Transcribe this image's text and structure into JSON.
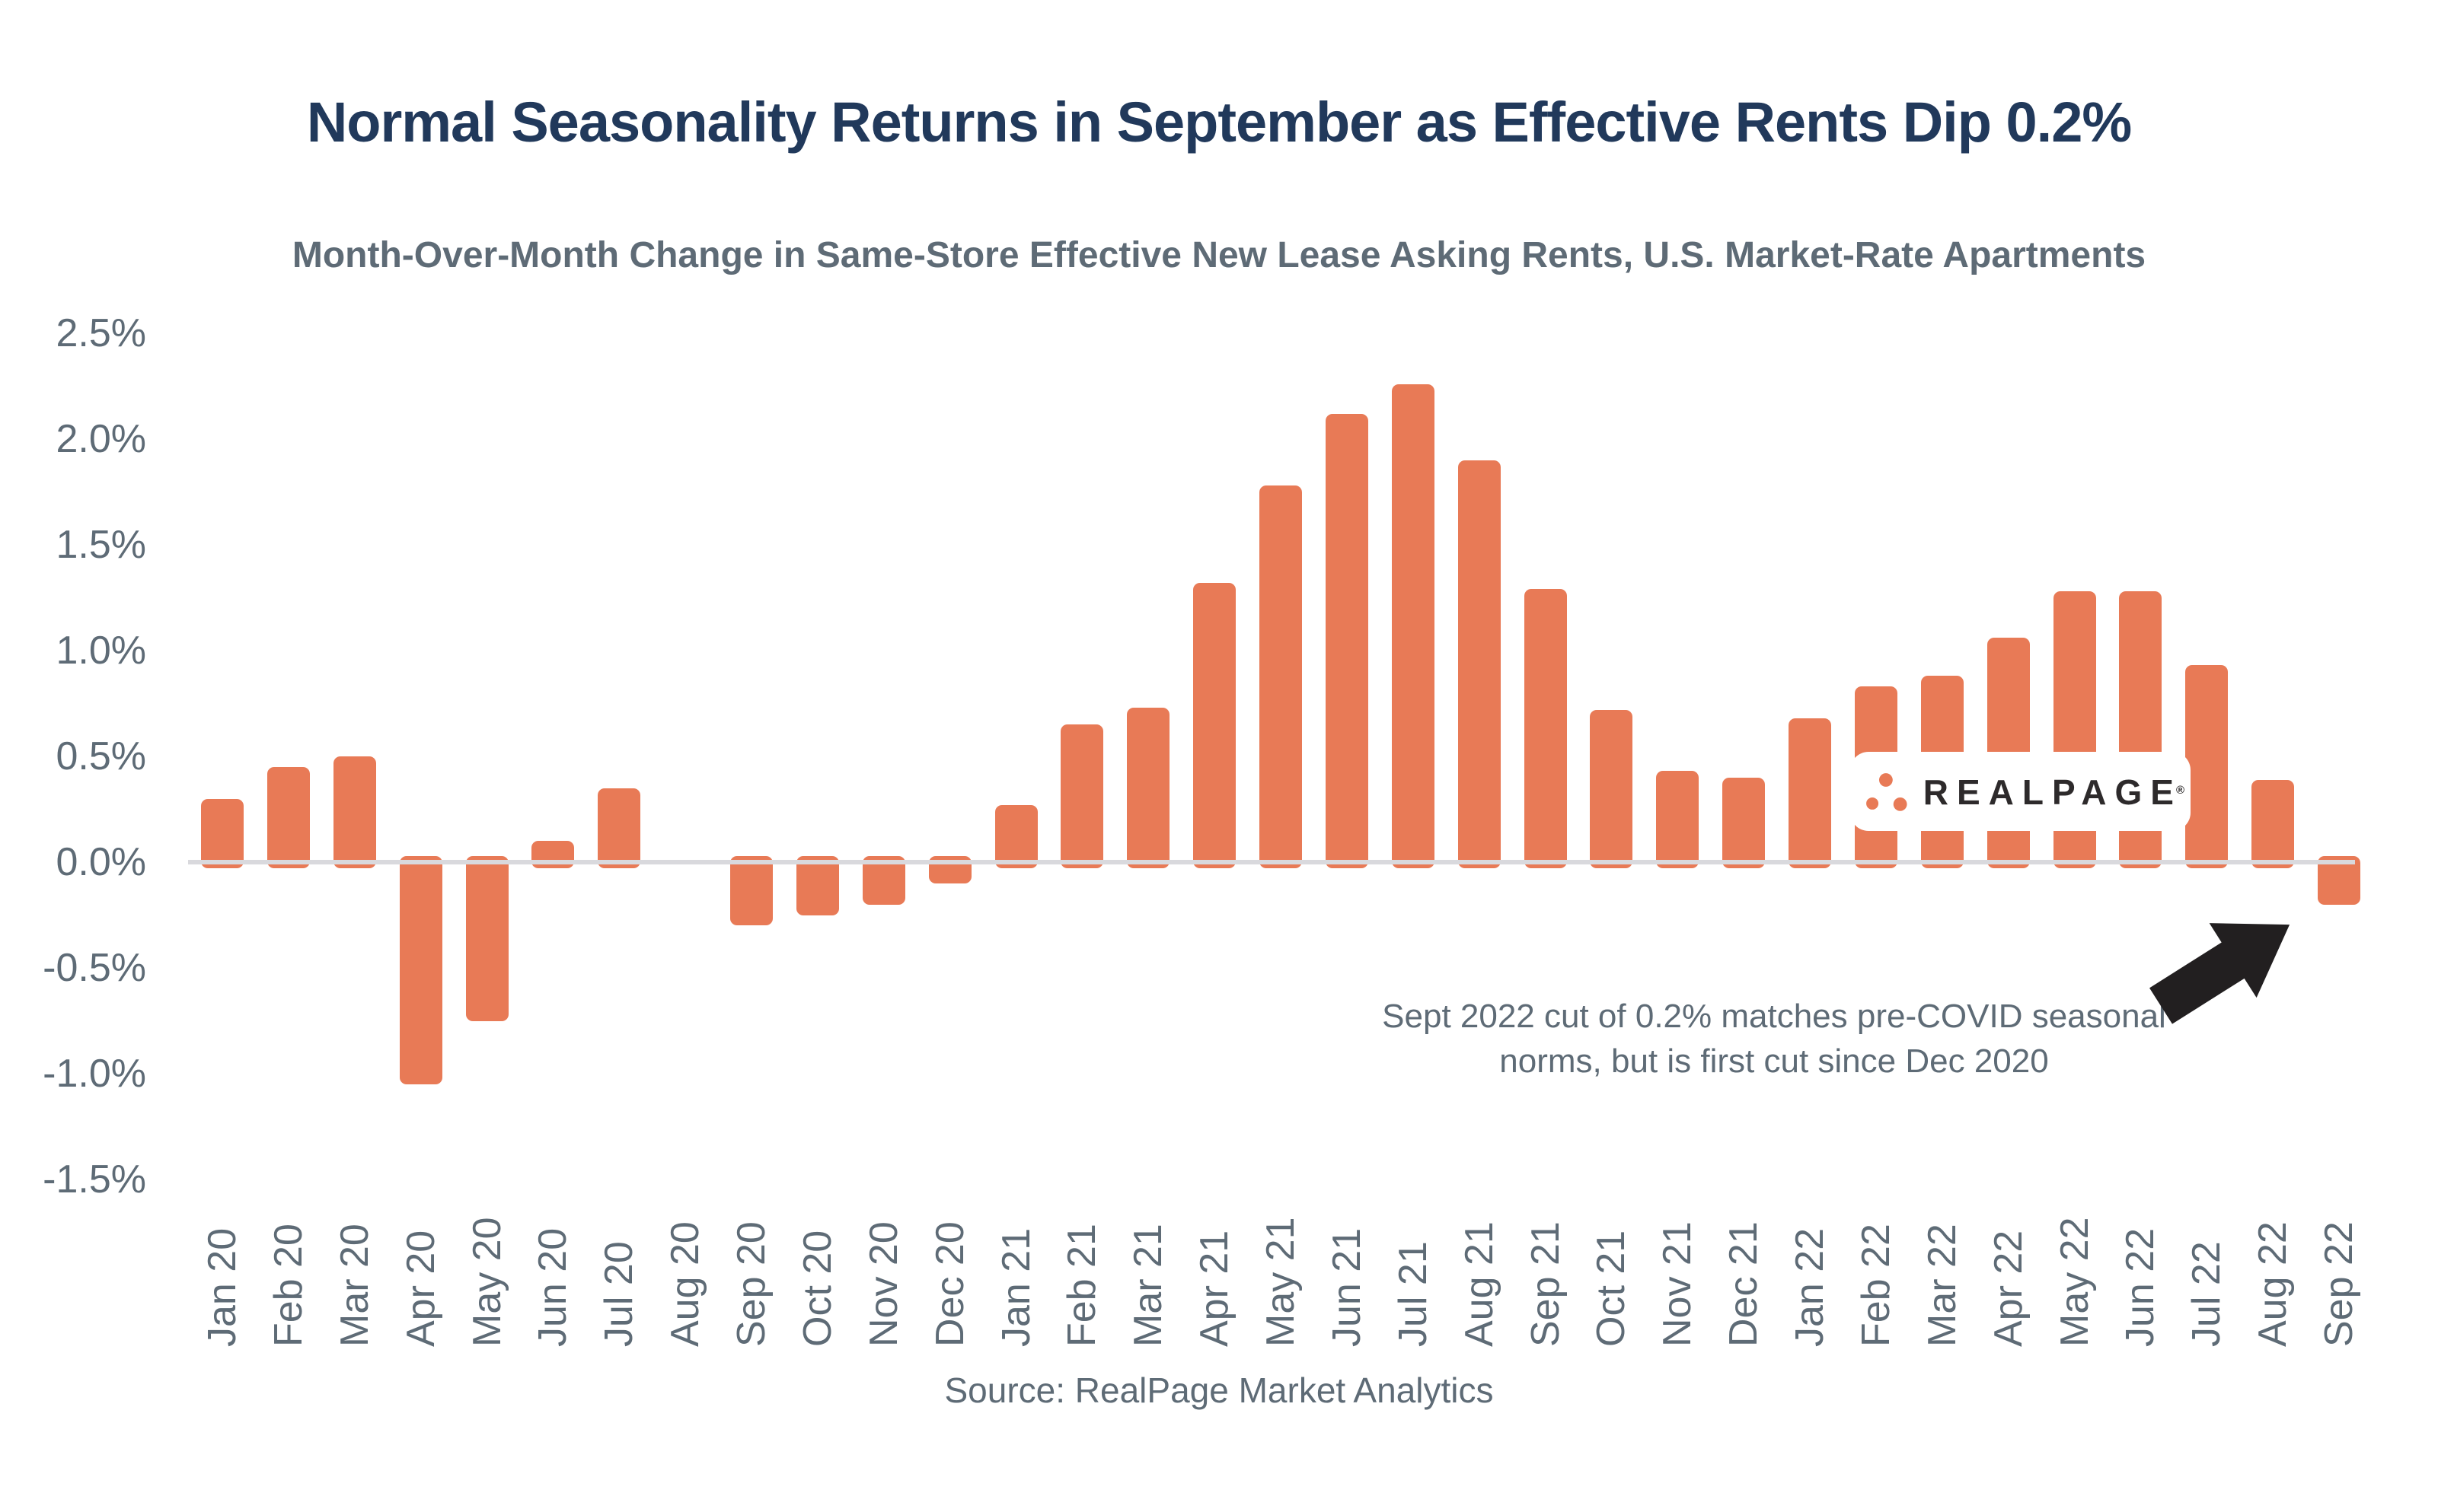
{
  "title": "Normal Seasonality Returns in September as Effective Rents Dip 0.2%",
  "subtitle": "Month-Over-Month Change in Same-Store Effective New Lease Asking Rents, U.S. Market-Rate Apartments",
  "source": "Source: RealPage Market Analytics",
  "annotation": {
    "line1": "Sept 2022 cut of 0.2% matches pre-COVID seasonal",
    "line2": "norms, but is first cut since Dec 2020"
  },
  "logo": {
    "text": "REALPAGE",
    "registered": "®"
  },
  "colors": {
    "bar": "#E87A56",
    "title": "#21395B",
    "axis_text": "#5E6B76",
    "subtitle_text": "#5E6B76",
    "annotation_text": "#5E6B76",
    "zero_line": "#D9D9DD",
    "arrow": "#221F20",
    "logo_text": "#2D2A2B",
    "logo_dots": "#E87A56"
  },
  "chart_data": {
    "type": "bar",
    "title": "Month-Over-Month Change in Same-Store Effective New Lease Asking Rents, U.S. Market-Rate Apartments",
    "xlabel": "",
    "ylabel": "",
    "ylim": [
      -1.5,
      2.5
    ],
    "grid": "zero-baseline-only",
    "legend": "none",
    "bar_color": "#E87A56",
    "ytick_values": [
      2.5,
      2.0,
      1.5,
      1.0,
      0.5,
      0.0,
      -0.5,
      -1.0,
      -1.5
    ],
    "ytick_labels": [
      "2.5%",
      "2.0%",
      "1.5%",
      "1.0%",
      "0.5%",
      "0.0%",
      "-0.5%",
      "-1.0%",
      "-1.5%"
    ],
    "categories": [
      "Jan 20",
      "Feb 20",
      "Mar 20",
      "Apr 20",
      "May 20",
      "Jun 20",
      "Jul 20",
      "Aug 20",
      "Sep 20",
      "Oct 20",
      "Nov 20",
      "Dec 20",
      "Jan 21",
      "Feb 21",
      "Mar 21",
      "Apr 21",
      "May 21",
      "Jun 21",
      "Jul 21",
      "Aug 21",
      "Sep 21",
      "Oct 21",
      "Nov 21",
      "Dec 21",
      "Jan 22",
      "Feb 22",
      "Mar 22",
      "Apr 22",
      "May 22",
      "Jun 22",
      "Jul 22",
      "Aug 22",
      "Sep 22"
    ],
    "values": [
      0.3,
      0.45,
      0.5,
      -1.05,
      -0.75,
      0.1,
      0.35,
      0.0,
      -0.3,
      -0.25,
      -0.2,
      -0.1,
      0.27,
      0.65,
      0.73,
      1.32,
      1.78,
      2.12,
      2.26,
      1.9,
      1.29,
      0.72,
      0.43,
      0.4,
      0.68,
      0.83,
      0.88,
      1.06,
      1.28,
      1.28,
      0.93,
      0.39,
      -0.2
    ]
  }
}
